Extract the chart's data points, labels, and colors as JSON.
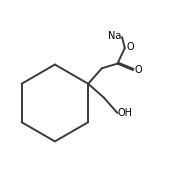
{
  "background_color": "#ffffff",
  "line_color": "#3a3a3a",
  "line_width": 1.4,
  "text_color": "#000000",
  "fig_width": 1.83,
  "fig_height": 1.84,
  "dpi": 100,
  "na_text": "Na",
  "o_ester_text": "O",
  "o_carbonyl_text": "O",
  "oh_text": "OH"
}
